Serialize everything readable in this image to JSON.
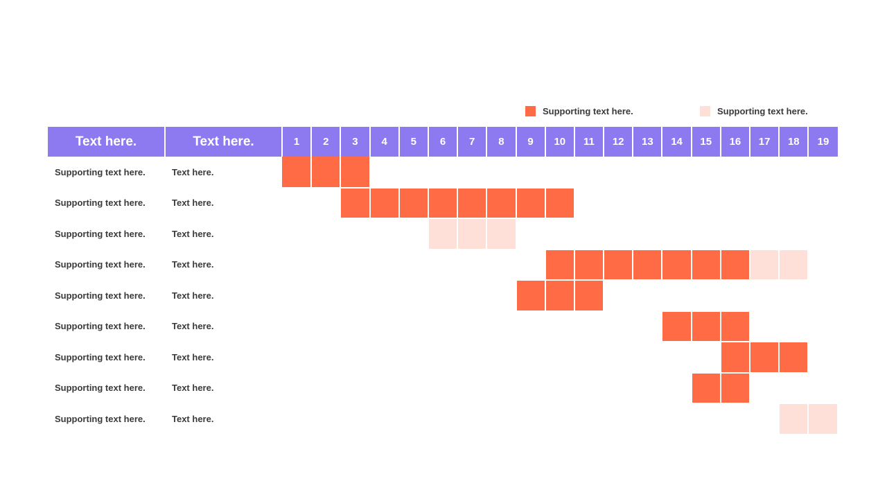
{
  "legend": {
    "items": [
      {
        "label": "Supporting text here.",
        "color": "#ff6b45"
      },
      {
        "label": "Supporting text here.",
        "color": "#ffe0d9"
      }
    ]
  },
  "header": {
    "col1": "Text here.",
    "col2": "Text here.",
    "days": [
      "1",
      "2",
      "3",
      "4",
      "5",
      "6",
      "7",
      "8",
      "9",
      "10",
      "11",
      "12",
      "13",
      "14",
      "15",
      "16",
      "17",
      "18",
      "19"
    ],
    "color": "#8e7af0"
  },
  "rows": [
    {
      "name": "Supporting text here.",
      "text": "Text here.",
      "full": [
        1,
        2,
        3
      ],
      "light": []
    },
    {
      "name": "Supporting text here.",
      "text": "Text here.",
      "full": [
        3,
        4,
        5,
        6,
        7,
        8,
        9,
        10
      ],
      "light": []
    },
    {
      "name": "Supporting text here.",
      "text": "Text here.",
      "full": [],
      "light": [
        6,
        7,
        8
      ]
    },
    {
      "name": "Supporting text here.",
      "text": "Text here.",
      "full": [
        10,
        11,
        12,
        13,
        14,
        15,
        16
      ],
      "light": [
        17,
        18
      ]
    },
    {
      "name": "Supporting text here.",
      "text": "Text here.",
      "full": [
        9,
        10,
        11
      ],
      "light": []
    },
    {
      "name": "Supporting text here.",
      "text": "Text here.",
      "full": [
        14,
        15,
        16
      ],
      "light": []
    },
    {
      "name": "Supporting text here.",
      "text": "Text here.",
      "full": [
        16,
        17,
        18
      ],
      "light": []
    },
    {
      "name": "Supporting text here.",
      "text": "Text here.",
      "full": [
        15,
        16
      ],
      "light": []
    },
    {
      "name": "Supporting text here.",
      "text": "Text here.",
      "full": [],
      "light": [
        18,
        19
      ]
    }
  ]
}
